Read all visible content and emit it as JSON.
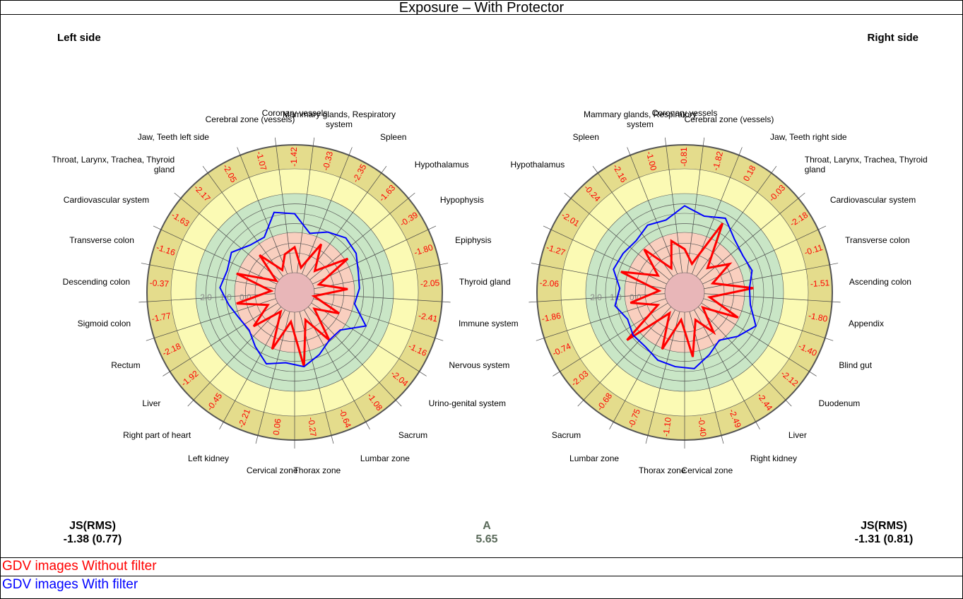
{
  "title": "Exposure – With  Protector",
  "left_heading": "Left side",
  "right_heading": "Right side",
  "chart_data": [
    {
      "type": "radar",
      "categories": [
        "Coronary vessels",
        "Mammary glands, Respiratory system",
        "Spleen",
        "Hypothalamus",
        "Hypophysis",
        "Epiphysis",
        "Thyroid gland",
        "Immune system",
        "Nervous system",
        "Urino-genital system",
        "Sacrum",
        "Lumbar zone",
        "Thorax zone",
        "Cervical zone",
        "Left kidney",
        "Right part of heart",
        "Liver",
        "Rectum",
        "Sigmoid colon",
        "Descending colon",
        "Transverse colon",
        "Cardiovascular system",
        "Throat, Larynx, Trachea, Thyroid gland",
        "Jaw, Teeth left side",
        "Cerebral zone (vessels)"
      ],
      "sector_labels": [
        "-1.42",
        "-0.33",
        "-2.35",
        "-1.63",
        "-0.39",
        "-1.80",
        "-2.05",
        "-2.41",
        "-1.16",
        "-2.04",
        "-1.08",
        "-0.64",
        "-0.27",
        "0.06",
        "-2.21",
        "-0.45",
        "-1.92",
        "-2.18",
        "-1.77",
        "-0.37",
        "-1.16",
        "-1.63",
        "-2.17",
        "-2.05",
        "-1.07"
      ],
      "rlim": [
        -2.5,
        5
      ],
      "rticks": [
        {
          "value": 0,
          "label": "0.0"
        },
        {
          "value": 1,
          "label": "1.0"
        },
        {
          "value": 2,
          "label": "2.0"
        }
      ],
      "series": [
        {
          "color": "#ff0000",
          "values": [
            -0.2,
            -1.2,
            0.3,
            -1.0,
            0.7,
            -1.2,
            0.2,
            -1.5,
            0.0,
            -1.2,
            0.5,
            -1.0,
            1.3,
            -1.0,
            0.6,
            -1.3,
            0.2,
            -1.0,
            0.5,
            -1.3,
            0.6,
            -1.4,
            0.1,
            -1.2,
            -0.5
          ]
        },
        {
          "color": "#0000ff",
          "values": [
            1.5,
            0.6,
            1.0,
            1.3,
            1.2,
            0.9,
            0.8,
            0.6,
            1.5,
            0.5,
            0.5,
            0.9,
            1.3,
            1.1,
            1.4,
            0.9,
            0.5,
            0.6,
            0.9,
            1.3,
            1.1,
            1.3,
            0.8,
            0.7,
            1.7
          ]
        }
      ],
      "stat_label": "JS(RMS)",
      "stat_text": "-1.38 (0.77)"
    },
    {
      "type": "radar",
      "categories": [
        "Coronary vessels",
        "Cerebral zone (vessels)",
        "Jaw, Teeth right side",
        "Throat, Larynx, Trachea, Thyroid gland",
        "Cardiovascular system",
        "Transverse colon",
        "Ascending colon",
        "Appendix",
        "Blind gut",
        "Duodenum",
        "Liver",
        "Right kidney",
        "Cervical zone",
        "Thorax zone",
        "Lumbar zone",
        "Sacrum",
        null,
        null,
        null,
        null,
        null,
        null,
        "Hypothalamus",
        "Spleen",
        "Mammary glands, Respiratory system"
      ],
      "sector_labels": [
        "-0.81",
        "-1.82",
        "0.18",
        "-0.03",
        "-2.18",
        "-0.11",
        "-1.51",
        "-1.80",
        "-1.40",
        "-2.12",
        "-2.44",
        "-2.49",
        "-0.40",
        "-1.10",
        "-0.75",
        "-0.68",
        "-2.03",
        "-0.74",
        "-1.86",
        "-2.06",
        "-1.27",
        "-2.01",
        "-0.24",
        "-2.16",
        "-1.00"
      ],
      "rlim": [
        -2.5,
        5
      ],
      "rticks": [
        {
          "value": 0,
          "label": "0.0"
        },
        {
          "value": 1,
          "label": "1.0"
        },
        {
          "value": 2,
          "label": "2.0"
        }
      ],
      "series": [
        {
          "color": "#ff0000",
          "values": [
            -0.3,
            -1.0,
            1.5,
            -0.8,
            0.2,
            -1.0,
            1.0,
            -1.2,
            0.5,
            -1.3,
            0.0,
            -1.0,
            0.8,
            -1.1,
            0.6,
            -1.2,
            1.3,
            -1.0,
            0.3,
            -1.2,
            0.9,
            -0.9,
            0.5,
            -1.1,
            0.2
          ]
        },
        {
          "color": "#0000ff",
          "values": [
            1.9,
            1.5,
            1.8,
            1.2,
            1.0,
            1.1,
            0.8,
            0.9,
            1.5,
            1.0,
            0.5,
            0.9,
            1.4,
            1.3,
            1.2,
            0.9,
            0.9,
            0.7,
            1.1,
            0.8,
            1.3,
            1.2,
            1.1,
            1.4,
            1.3
          ]
        }
      ],
      "stat_label": "JS(RMS)",
      "stat_text": "-1.31 (0.81)"
    }
  ],
  "center_stat": {
    "label": "A",
    "value": 5.65
  },
  "legend": [
    {
      "name": "GDV images Without filter",
      "color": "#ff0000"
    },
    {
      "name": "GDV images With filter",
      "color": "#0000ff"
    }
  ]
}
